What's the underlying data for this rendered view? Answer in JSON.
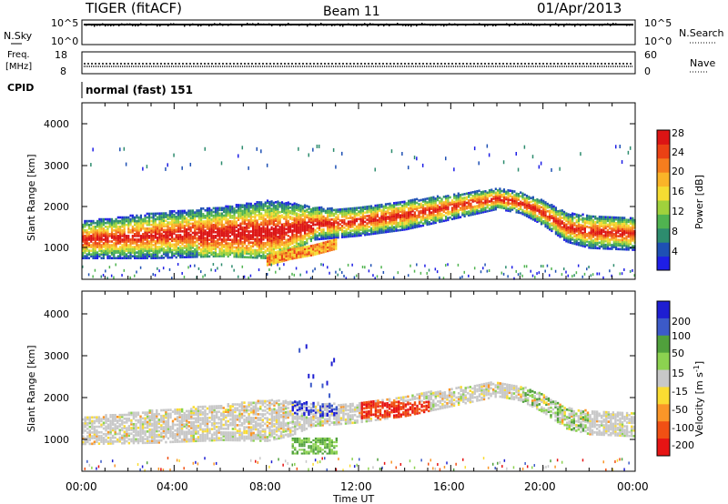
{
  "header": {
    "station": "TIGER (fitACF)",
    "beam": "Beam 11",
    "date": "01/Apr/2013"
  },
  "noise_panel": {
    "left_label": "N.Sky",
    "right_label": "N.Search",
    "left_ticks": [
      "10^5",
      "10^0"
    ],
    "right_ticks": [
      "10^5",
      "10^0"
    ]
  },
  "freq_panel": {
    "left_label_line1": "Freq.",
    "left_label_line2": "[MHz]",
    "right_label": "Nave",
    "left_ticks": [
      "18",
      "8"
    ],
    "right_ticks": [
      "60",
      "0"
    ]
  },
  "cpid_panel": {
    "label": "CPID",
    "value": "normal (fast) 151"
  },
  "chart_data": [
    {
      "type": "heatmap",
      "name": "power",
      "ylabel": "Slant Range [km]",
      "ylim": [
        200,
        4500
      ],
      "yticks": [
        "4000",
        "3000",
        "2000",
        "1000"
      ],
      "colorbar_label": "Power [dB]",
      "colorbar_ticks": [
        "28",
        "24",
        "20",
        "16",
        "12",
        "8",
        "4"
      ],
      "colorbar_colors": [
        "#1e1ee6",
        "#1e50b4",
        "#2d8c6e",
        "#50b450",
        "#a0d23c",
        "#f5dc32",
        "#fab428",
        "#f57d1e",
        "#eb4114",
        "#dc1414"
      ],
      "bands": [
        {
          "time": [
            0,
            3,
            6,
            8,
            9,
            10,
            11,
            12,
            14,
            16,
            18,
            19,
            20,
            21,
            22,
            24
          ],
          "center_km": [
            1150,
            1250,
            1350,
            1400,
            1450,
            1550,
            1550,
            1600,
            1750,
            1950,
            2150,
            2050,
            1800,
            1450,
            1350,
            1300
          ],
          "width_km": [
            450,
            550,
            600,
            700,
            600,
            400,
            350,
            350,
            350,
            300,
            250,
            250,
            300,
            350,
            400,
            400
          ],
          "level": "high"
        },
        {
          "time": [
            8,
            9,
            10,
            11
          ],
          "center_km": [
            650,
            800,
            900,
            1050
          ],
          "width_km": [
            150,
            150,
            150,
            150
          ],
          "level": "mid"
        }
      ],
      "scatter_top_km": [
        3000,
        3500
      ]
    },
    {
      "type": "heatmap",
      "name": "velocity",
      "ylabel": "Slant Range [km]",
      "ylim": [
        200,
        4500
      ],
      "yticks": [
        "4000",
        "3000",
        "2000",
        "1000"
      ],
      "xticks": [
        "00:00",
        "04:00",
        "08:00",
        "12:00",
        "16:00",
        "20:00",
        "00:00"
      ],
      "xlabel": "Time UT",
      "colorbar_label": "Velocity [m s^-1]",
      "colorbar_ticks": [
        "200",
        "100",
        "50",
        "15",
        "-15",
        "-50",
        "-100",
        "-200"
      ],
      "colorbar_colors": [
        "#1e1ed2",
        "#3c5ac8",
        "#50a03c",
        "#8cd250",
        "#c8c8c8",
        "#fadc32",
        "#fa9628",
        "#f05014",
        "#e61414"
      ],
      "features": [
        {
          "time": [
            9,
            11
          ],
          "km": [
            1500,
            3300
          ],
          "velocity": "positive"
        },
        {
          "time": [
            12,
            15
          ],
          "km": [
            1500,
            1800
          ],
          "velocity": "negative"
        },
        {
          "time": [
            10,
            11
          ],
          "km": [
            600,
            900
          ],
          "velocity": "positive"
        }
      ]
    }
  ]
}
